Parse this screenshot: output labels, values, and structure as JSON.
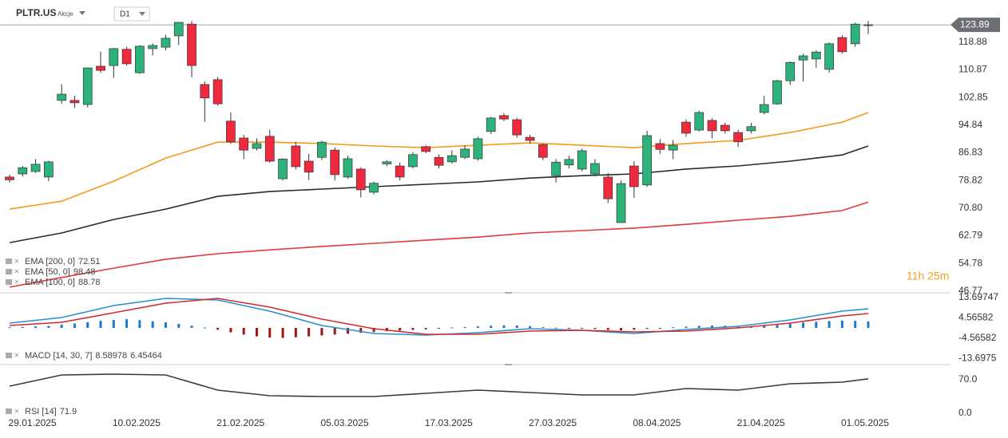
{
  "header": {
    "symbol": "PLTR.US",
    "asset_class": "Akcje",
    "interval": "D1",
    "countdown": "11h 25m"
  },
  "chart_data": [
    {
      "type": "candlestick",
      "categories": [
        null,
        null,
        "29.01.2025",
        null,
        null,
        null,
        null,
        null,
        null,
        null,
        "10.02.2025",
        null,
        null,
        null,
        null,
        null,
        null,
        null,
        "21.02.2025",
        null,
        null,
        null,
        null,
        null,
        null,
        null,
        "05.03.2025",
        null,
        null,
        null,
        null,
        null,
        null,
        null,
        "17.03.2025",
        null,
        null,
        null,
        null,
        null,
        null,
        null,
        "27.03.2025",
        null,
        null,
        null,
        null,
        null,
        null,
        null,
        "08.04.2025",
        null,
        null,
        null,
        null,
        null,
        null,
        null,
        "21.04.2025",
        null,
        null,
        null,
        null,
        null,
        null,
        null,
        "01.05.2025"
      ],
      "open": [
        79.8,
        80.7,
        81.4,
        79.8,
        102,
        102,
        100.8,
        111.9,
        112.1,
        116.8,
        110,
        117,
        117.4,
        120.7,
        124.1,
        106.6,
        108,
        96,
        91.1,
        88.1,
        91.6,
        79.3,
        88.8,
        84.4,
        85.5,
        87.6,
        79.8,
        82.1,
        75.4,
        83.6,
        83,
        82.8,
        88.6,
        85.5,
        84.2,
        85.5,
        85.1,
        93,
        97.6,
        96.4,
        91.3,
        89.2,
        80.2,
        83.3,
        82.1,
        80.7,
        79.8,
        66.6,
        83,
        77.5,
        89.5,
        87.6,
        95.7,
        93.4,
        96.2,
        94.8,
        92.7,
        93.2,
        98.5,
        101,
        107.7,
        113.7,
        114,
        111,
        120.2,
        118.4,
        123.7
      ],
      "high": [
        80.5,
        83,
        85,
        84.5,
        106.7,
        103.4,
        111.5,
        116.1,
        117.2,
        117.5,
        118,
        118.5,
        121,
        124.6,
        125,
        107.5,
        108.8,
        98.5,
        92,
        91,
        93.5,
        85.3,
        90,
        86.5,
        90.3,
        88.4,
        86,
        82.6,
        78.5,
        84.7,
        84,
        87,
        89,
        86.3,
        87.5,
        89,
        91.5,
        97.2,
        98.3,
        97,
        92,
        89.5,
        85,
        86,
        88,
        85,
        81,
        78.8,
        84.4,
        93.2,
        90.8,
        90.5,
        96.5,
        99,
        96.8,
        95.5,
        93.5,
        95.5,
        103.3,
        108,
        113.3,
        115.5,
        116.5,
        118.8,
        120.8,
        124.5,
        125
      ],
      "low": [
        78.2,
        80,
        81,
        78.6,
        101,
        99.8,
        100,
        110,
        108.5,
        112,
        109.7,
        115,
        116.5,
        118,
        108.7,
        95.8,
        100.5,
        89.4,
        85,
        87.5,
        84,
        78.8,
        82,
        79,
        84.7,
        78.8,
        79.3,
        73.9,
        74.8,
        82.9,
        78.8,
        82.3,
        86.7,
        82.3,
        83.7,
        85,
        84.6,
        92.3,
        96,
        91.2,
        89.5,
        84.7,
        78.2,
        82.3,
        81.5,
        80,
        72.3,
        66.6,
        73.8,
        76.9,
        86.5,
        85,
        91.5,
        93,
        91,
        92.4,
        88.5,
        92.4,
        98,
        100.7,
        106.5,
        107.5,
        111.5,
        110,
        115.6,
        117.5,
        121.2
      ],
      "close": [
        79.0,
        82.5,
        83.5,
        84.2,
        103.8,
        101.3,
        111.4,
        110.7,
        117,
        112.6,
        117.7,
        117.9,
        120,
        124.6,
        112.1,
        102.7,
        101,
        90,
        87.6,
        89.5,
        84.4,
        85,
        82.8,
        81.2,
        89.9,
        80.5,
        85.1,
        76.1,
        78,
        84.2,
        79.8,
        86.3,
        87.2,
        83.2,
        86,
        87.9,
        90.9,
        96.9,
        96.6,
        92,
        90.4,
        85.5,
        84.1,
        84.9,
        87.4,
        83.7,
        73.5,
        77.9,
        77,
        91.8,
        87.8,
        89,
        92.5,
        98.5,
        93.2,
        93.2,
        90,
        94.4,
        100.8,
        107.7,
        113,
        114.9,
        116,
        118.4,
        116.1,
        124.1,
        123.89
      ],
      "up_color": "#2cb27a",
      "down_color": "#f0293e",
      "last_price": 123.89,
      "ylim": [
        46.5,
        125.3
      ],
      "yticks": [
        118.88,
        110.87,
        102.85,
        94.84,
        86.83,
        78.82,
        {
          "value": 70.8,
          "label": "70.80"
        },
        62.79,
        54.78,
        46.77
      ],
      "series": [
        {
          "name": "EMA [200, 0]",
          "color": "#e03a3a",
          "last": 72.51,
          "x": [
            0,
            4,
            8,
            12,
            16,
            20,
            24,
            28,
            32,
            36,
            40,
            44,
            48,
            52,
            56,
            60,
            64,
            66
          ],
          "values": [
            47.9,
            50.7,
            53.4,
            56.0,
            57.6,
            58.7,
            59.7,
            60.6,
            61.5,
            62.4,
            63.6,
            64.3,
            65.0,
            66.1,
            67.3,
            68.4,
            70.1,
            72.51
          ]
        },
        {
          "name": "EMA [50, 0]",
          "color": "#f39a1e",
          "last": 98.48,
          "x": [
            0,
            4,
            8,
            12,
            16,
            20,
            24,
            28,
            32,
            36,
            40,
            44,
            48,
            52,
            56,
            60,
            64,
            66
          ],
          "values": [
            70.5,
            72.8,
            78.6,
            85.3,
            89.9,
            89.9,
            89.5,
            88.8,
            88.3,
            89.0,
            89.7,
            89.0,
            88.3,
            89.5,
            90.4,
            92.7,
            95.7,
            98.48
          ]
        },
        {
          "name": "EMA [100, 0]",
          "color": "#252b33",
          "last": 88.78,
          "x": [
            0,
            4,
            8,
            12,
            16,
            20,
            24,
            28,
            32,
            36,
            40,
            44,
            48,
            52,
            56,
            60,
            64,
            66
          ],
          "values": [
            60.8,
            63.6,
            67.5,
            70.5,
            74.2,
            75.6,
            76.3,
            77.0,
            77.7,
            78.4,
            79.5,
            80.2,
            80.7,
            82.1,
            83.0,
            84.4,
            86.2,
            88.78
          ]
        }
      ]
    },
    {
      "type": "macd",
      "name": "MACD [14, 30, 7]",
      "ylim": [
        -16.5,
        15.8
      ],
      "yticks": [
        13.69747,
        4.56582,
        -4.56582,
        -13.6975
      ],
      "series": [
        {
          "color": "#2a8fd0",
          "last": 8.58978,
          "x": [
            0,
            4,
            8,
            12,
            16,
            20,
            24,
            28,
            32,
            36,
            40,
            44,
            48,
            52,
            56,
            60,
            64,
            66
          ],
          "values": [
            2.16,
            4.67,
            10.06,
            13.29,
            12.57,
            7.54,
            1.08,
            -2.51,
            -3.23,
            -2.15,
            -0.35,
            -1.07,
            -2.51,
            -0.71,
            0.72,
            3.6,
            7.54,
            8.58978
          ]
        },
        {
          "color": "#d42b2b",
          "last": 6.45464,
          "x": [
            0,
            4,
            8,
            12,
            16,
            20,
            24,
            28,
            32,
            36,
            40,
            44,
            48,
            52,
            56,
            60,
            64,
            66
          ],
          "values": [
            1.08,
            2.52,
            6.83,
            11.13,
            13.29,
            9.34,
            3.96,
            -0.35,
            -2.87,
            -2.87,
            -1.44,
            -1.07,
            -1.79,
            -1.44,
            0,
            2.16,
            5.39,
            6.45464
          ]
        }
      ],
      "histogram": {
        "up_color": "#1f78c8",
        "down_color": "#a0151a",
        "values": [
          0.3,
          0.5,
          0.7,
          0.9,
          1.5,
          2.0,
          2.6,
          3.2,
          3.6,
          3.9,
          3.5,
          3.0,
          2.5,
          1.8,
          1.0,
          0.2,
          -0.8,
          -2,
          -3,
          -3.8,
          -4.3,
          -4.5,
          -4.2,
          -3.8,
          -3.4,
          -3.0,
          -2.6,
          -2.2,
          -1.9,
          -1.5,
          -1.2,
          -0.9,
          -0.6,
          -0.3,
          0.2,
          0.4,
          0.7,
          1.0,
          1.2,
          1.1,
          0.8,
          0.4,
          0.1,
          -0.2,
          -0.3,
          -0.5,
          -0.9,
          -1.1,
          -0.8,
          -0.4,
          -0.2,
          0.3,
          0.6,
          0.9,
          1.1,
          1.0,
          0.9,
          0.8,
          0.9,
          1.4,
          1.9,
          2.4,
          2.8,
          3.1,
          3.3,
          3.2,
          2.9
        ]
      }
    },
    {
      "type": "line",
      "name": "RSI [14]",
      "ylim": [
        -6.7,
        98.3
      ],
      "yticks": [
        {
          "value": 70,
          "label": "70.0"
        },
        {
          "value": 0,
          "label": "0.0"
        }
      ],
      "series": [
        {
          "color": "#3a3a3a",
          "last": 71.9,
          "x": [
            0,
            4,
            8,
            12,
            16,
            20,
            24,
            28,
            32,
            36,
            40,
            44,
            48,
            52,
            56,
            60,
            64,
            66
          ],
          "values": [
            56.7,
            80,
            81.7,
            80,
            48.3,
            36.7,
            35,
            35,
            41.7,
            48.3,
            43.3,
            38.3,
            38.3,
            51.7,
            48.3,
            61.7,
            65,
            71.9
          ]
        }
      ]
    }
  ]
}
